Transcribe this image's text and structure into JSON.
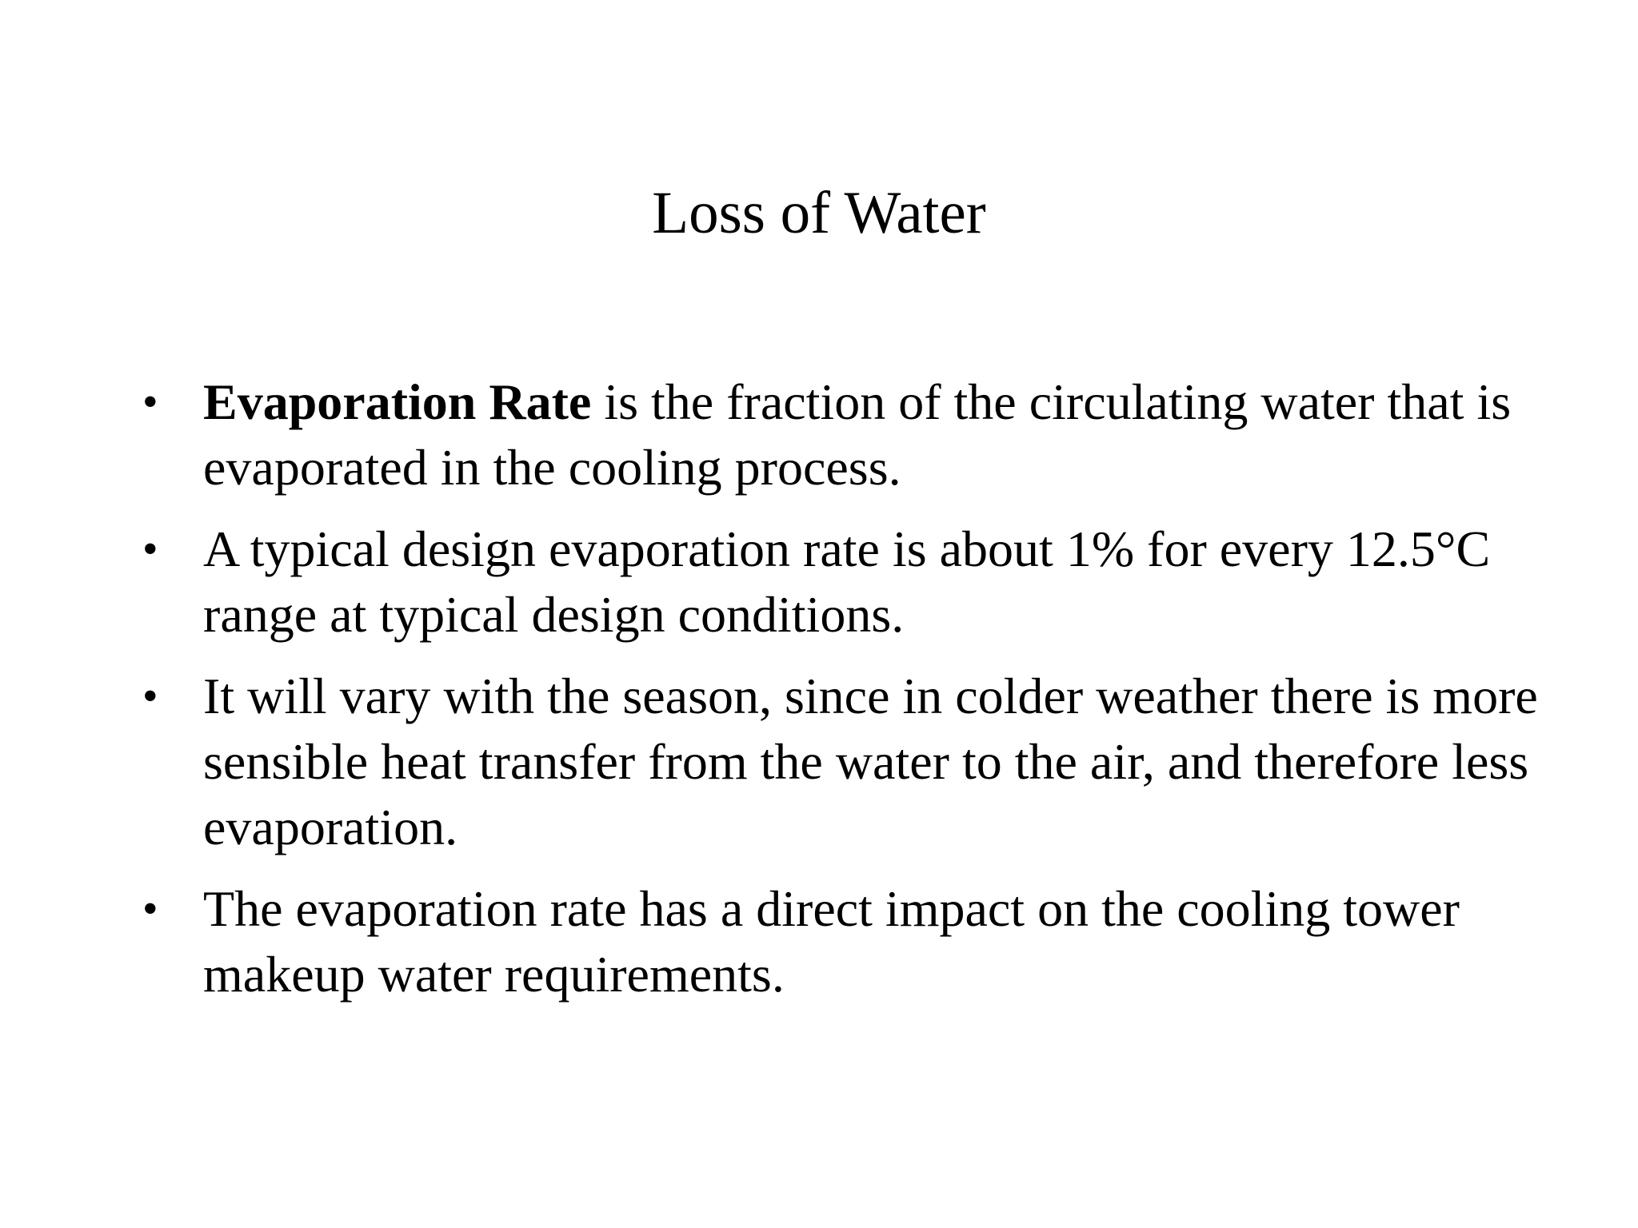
{
  "slide": {
    "title": "Loss of Water",
    "bullet_symbol": "•",
    "bullets": [
      {
        "bold": "Evaporation Rate",
        "text": " is the fraction of the circulating water that is evaporated in the cooling process."
      },
      {
        "bold": "",
        "text": "A typical design evaporation rate is about 1% for every 12.5°C range at typical design conditions."
      },
      {
        "bold": "",
        "text": "It will vary with the season, since in colder weather there is more sensible heat transfer from the water to the air, and therefore less evaporation."
      },
      {
        "bold": "",
        "text": "The evaporation rate has a direct impact on the cooling tower makeup water requirements."
      }
    ]
  }
}
